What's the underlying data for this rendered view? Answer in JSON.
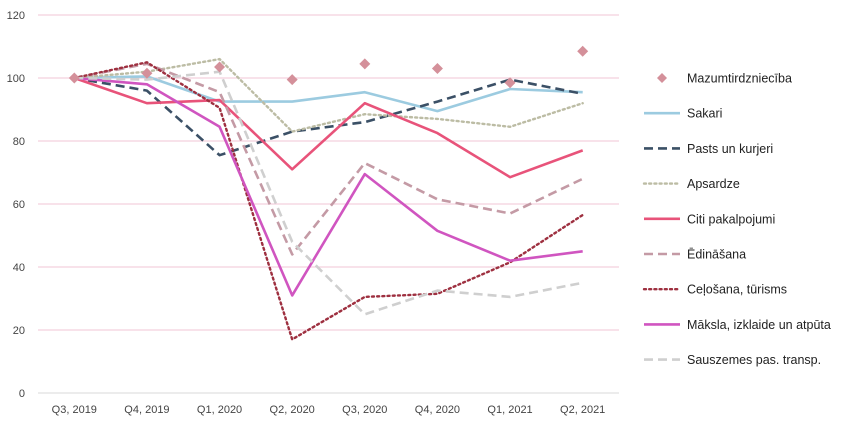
{
  "chart_data": {
    "type": "line",
    "title": "",
    "xlabel": "",
    "ylabel": "",
    "categories": [
      "Q3, 2019",
      "Q4, 2019",
      "Q1, 2020",
      "Q2, 2020",
      "Q3, 2020",
      "Q4, 2020",
      "Q1, 2021",
      "Q2, 2021"
    ],
    "ylim": [
      0,
      120
    ],
    "yticks": [
      "0",
      "20",
      "40",
      "60",
      "80",
      "100",
      "120"
    ],
    "grid": true,
    "legend_position": "right",
    "series": [
      {
        "name": "Mazumtirdzniecība",
        "values": [
          100,
          101.5,
          103.5,
          99.5,
          104.5,
          103,
          98.5,
          108.5
        ],
        "color": "#d4909a",
        "style": "marker"
      },
      {
        "name": "Sakari",
        "values": [
          100,
          100.5,
          92.5,
          92.5,
          95.5,
          89.5,
          96.5,
          95.5
        ],
        "color": "#9ccbe0",
        "style": "solid"
      },
      {
        "name": "Pasts un kurjeri",
        "values": [
          100,
          96,
          75.5,
          83,
          86,
          92.5,
          99.5,
          95
        ],
        "color": "#3b5066",
        "style": "dash"
      },
      {
        "name": "Apsardze",
        "values": [
          100,
          102,
          106,
          83,
          88.5,
          87,
          84.5,
          92
        ],
        "color": "#bcbca4",
        "style": "dot"
      },
      {
        "name": "Citi pakalpojumi",
        "values": [
          100,
          92,
          93,
          71,
          92,
          82.5,
          68.5,
          77
        ],
        "color": "#e8537a",
        "style": "solid"
      },
      {
        "name": "Ēdināšana",
        "values": [
          100,
          104.5,
          95.5,
          44,
          73,
          61.5,
          57,
          68
        ],
        "color": "#c49aa5",
        "style": "dash"
      },
      {
        "name": "Ceļošana, tūrisms",
        "values": [
          100,
          105,
          90.5,
          17,
          30.5,
          31.5,
          41.5,
          56.5
        ],
        "color": "#9e3040",
        "style": "dot"
      },
      {
        "name": "Māksla, izklaide un atpūta",
        "values": [
          100,
          98,
          84.5,
          31,
          69.5,
          51.5,
          42,
          45
        ],
        "color": "#d055c0",
        "style": "solid"
      },
      {
        "name": "Sauszemes pas. transp.",
        "values": [
          100,
          99.5,
          102,
          48,
          25,
          32.5,
          30.5,
          35
        ],
        "color": "#cfcfcf",
        "style": "dash"
      }
    ]
  }
}
